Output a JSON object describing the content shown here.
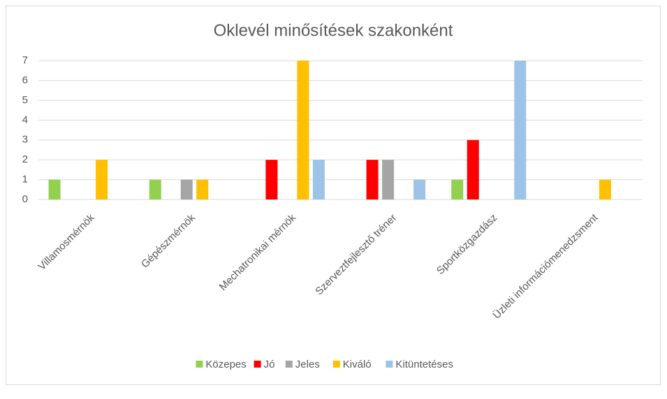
{
  "chart_data": {
    "type": "bar",
    "title": "Oklevél minősítések szakonként",
    "categories": [
      "Villamosmérnök",
      "Gépészmérnök",
      "Mechatronikai mérnök",
      "Szerveztfejlesztő tréner",
      "Sportközgazdász",
      "Üzleti információmenedzsment"
    ],
    "series": [
      {
        "name": "Közepes",
        "color": "#92d050",
        "values": [
          1,
          1,
          null,
          null,
          1,
          null
        ]
      },
      {
        "name": "Jó",
        "color": "#ff0000",
        "values": [
          null,
          null,
          2,
          2,
          3,
          null
        ]
      },
      {
        "name": "Jeles",
        "color": "#a5a5a5",
        "values": [
          null,
          1,
          null,
          2,
          null,
          null
        ]
      },
      {
        "name": "Kiváló",
        "color": "#ffc000",
        "values": [
          2,
          1,
          7,
          null,
          null,
          1
        ]
      },
      {
        "name": "Kitüntetéses",
        "color": "#9dc3e6",
        "values": [
          null,
          null,
          2,
          1,
          7,
          null
        ]
      }
    ],
    "ylim": [
      0,
      7
    ],
    "yticks": [
      0,
      1,
      2,
      3,
      4,
      5,
      6,
      7
    ],
    "grid": true,
    "legend": "bottom"
  }
}
